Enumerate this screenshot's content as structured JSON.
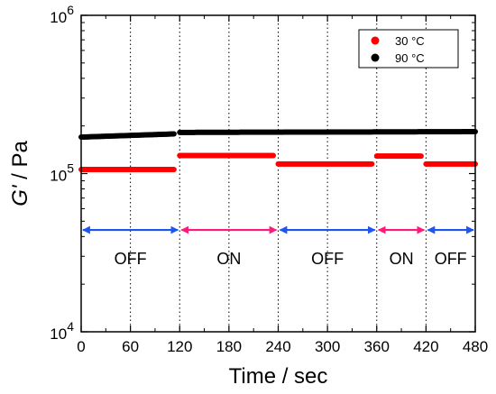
{
  "chart_data": {
    "type": "scatter",
    "title": "",
    "xlabel": "Time / sec",
    "ylabel_italic": "G'",
    "ylabel_rest": " / Pa",
    "xlim": [
      0,
      480
    ],
    "ylim": [
      10000,
      1000000
    ],
    "yscale": "log",
    "x_ticks": [
      0,
      60,
      120,
      180,
      240,
      300,
      360,
      420,
      480
    ],
    "x_tick_labels": [
      "0",
      "60",
      "120",
      "180",
      "240",
      "300",
      "360",
      "420",
      "480"
    ],
    "y_ticks": [
      10000,
      100000,
      1000000
    ],
    "y_tick_labels": [
      {
        "base": "10",
        "exp": "4"
      },
      {
        "base": "10",
        "exp": "5"
      },
      {
        "base": "10",
        "exp": "6"
      }
    ],
    "grid": "vertical dotted lines at 60, 120, 180, 240, 300, 360, 420",
    "legend_position": "top-right",
    "series": [
      {
        "name": "30 °C",
        "color": "#ff0000",
        "segments": [
          {
            "x_start": 0,
            "x_end": 113,
            "y_start": 106000,
            "y_end": 106000
          },
          {
            "x_start": 120,
            "x_end": 234,
            "y_start": 130000,
            "y_end": 130000
          },
          {
            "x_start": 240,
            "x_end": 354,
            "y_start": 115000,
            "y_end": 115000
          },
          {
            "x_start": 360,
            "x_end": 414,
            "y_start": 129000,
            "y_end": 129000
          },
          {
            "x_start": 420,
            "x_end": 480,
            "y_start": 115000,
            "y_end": 115000
          }
        ]
      },
      {
        "name": "90 °C",
        "color": "#000000",
        "segments": [
          {
            "x_start": 0,
            "x_end": 113,
            "y_start": 170000,
            "y_end": 178000
          },
          {
            "x_start": 120,
            "x_end": 480,
            "y_start": 182000,
            "y_end": 184000
          }
        ]
      }
    ],
    "annotations": [
      {
        "text": "OFF",
        "x_start": 0,
        "x_end": 120,
        "color": "#1e55f0"
      },
      {
        "text": "ON",
        "x_start": 120,
        "x_end": 240,
        "color": "#ff1a7a"
      },
      {
        "text": "OFF",
        "x_start": 240,
        "x_end": 360,
        "color": "#1e55f0"
      },
      {
        "text": "ON",
        "x_start": 360,
        "x_end": 420,
        "color": "#ff1a7a"
      },
      {
        "text": "OFF",
        "x_start": 420,
        "x_end": 480,
        "color": "#1e55f0"
      }
    ],
    "annotation_arrow_y": 44000,
    "annotation_text_y": 29000
  }
}
